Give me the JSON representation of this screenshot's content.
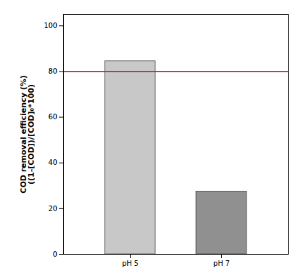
{
  "chart_data": {
    "type": "bar",
    "categories": [
      "pH 5",
      "pH 7"
    ],
    "values": [
      84.5,
      27.5
    ],
    "colors": [
      "#c8c8c8",
      "#909090"
    ],
    "ylabel": "COD removal efficiency (%)\n((1-[COD])/[COD]₀*100)",
    "ylim": [
      0,
      105
    ],
    "yticks": [
      0,
      20,
      40,
      60,
      80,
      100
    ],
    "grid": false,
    "reference_line": {
      "value": 80,
      "color": "#cc2222"
    }
  }
}
